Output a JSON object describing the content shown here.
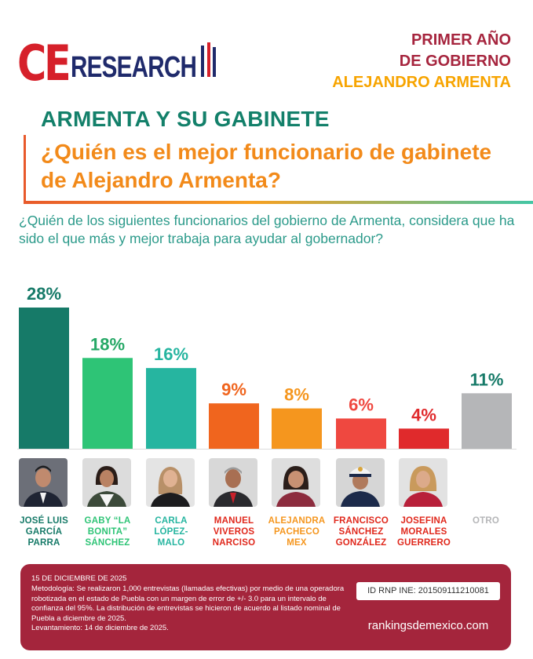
{
  "logo": {
    "ce": "CE",
    "research": "RESEARCH"
  },
  "header": {
    "line1": "PRIMER AÑO",
    "line2": "DE GOBIERNO",
    "line3": "ALEJANDRO ARMENTA",
    "colors": {
      "line1": "#a6253e",
      "line3": "#f7a400"
    }
  },
  "section_title": "ARMENTA Y SU GABINETE",
  "question": "¿Quién es el mejor funcionario de gabinete de Alejandro Armenta?",
  "subquestion": "¿Quién de los siguientes funcionarios del gobierno de Armenta, considera que ha sido el que más y mejor trabaja para ayudar al gobernador?",
  "chart_data": {
    "type": "bar",
    "categories": [
      "JOSÉ LUIS GARCÍA PARRA",
      "GABY “LA BONITA” SÁNCHEZ",
      "CARLA LÓPEZ-MALO",
      "MANUEL VIVEROS NARCISO",
      "ALEJANDRA PACHECO MEX",
      "FRANCISCO SÁNCHEZ GONZÁLEZ",
      "JOSEFINA MORALES GUERRERO",
      "OTRO"
    ],
    "name_lines": [
      [
        "JOSÉ LUIS",
        "GARCÍA",
        "PARRA"
      ],
      [
        "GABY “LA",
        "BONITA”",
        "SÁNCHEZ"
      ],
      [
        "CARLA",
        "LÓPEZ-",
        "MALO"
      ],
      [
        "MANUEL",
        "VIVEROS",
        "NARCISO"
      ],
      [
        "ALEJANDRA",
        "PACHECO",
        "MEX"
      ],
      [
        "FRANCISCO",
        "SÁNCHEZ",
        "GONZÁLEZ"
      ],
      [
        "JOSEFINA",
        "MORALES",
        "GUERRERO"
      ],
      [
        "OTRO"
      ]
    ],
    "values": [
      28,
      18,
      16,
      9,
      8,
      6,
      4,
      11
    ],
    "labels": [
      "28%",
      "18%",
      "16%",
      "9%",
      "8%",
      "6%",
      "4%",
      "11%"
    ],
    "colors": [
      "#167a68",
      "#2ec476",
      "#26b5a0",
      "#f0651e",
      "#f5961e",
      "#ef4840",
      "#e02a2c",
      "#b5b6b8"
    ],
    "name_colors": [
      "#167a68",
      "#2ec476",
      "#26b5a0",
      "#e0281c",
      "#f5961e",
      "#e0281c",
      "#e0281c",
      "#b5b6b8"
    ],
    "ylim": [
      0,
      28
    ]
  },
  "footer": {
    "date": "15 DE DICIEMBRE DE 2025",
    "methodology": "Metodología: Se realizaron 1,000 entrevistas (llamadas efectivas) por medio de una operadora robotizada en el estado de Puebla con un margen de error de +/- 3.0 para un intervalo de confianza del 95%. La distribución de entrevistas se hicieron de acuerdo al listado nominal de Puebla a diciembre de 2025.",
    "survey": "Levantamiento: 14 de diciembre de 2025.",
    "id_rnp": "ID RNP INE: 201509111210081",
    "url": "rankingsdemexico.com"
  }
}
